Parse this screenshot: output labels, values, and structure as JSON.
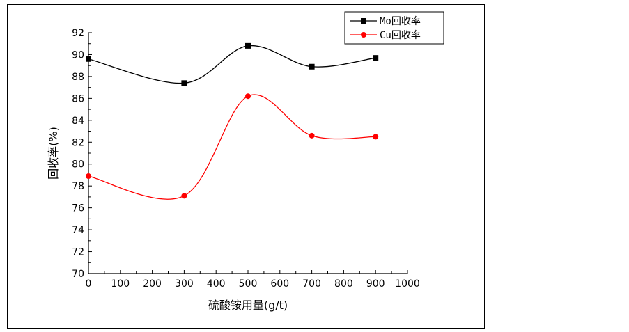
{
  "chart_data": {
    "type": "line",
    "xlabel": "硫酸铵用量(g/t)",
    "ylabel": "回收率(%)",
    "xlim": [
      0,
      1000
    ],
    "ylim": [
      70,
      92
    ],
    "x_ticks": [
      0,
      100,
      200,
      300,
      400,
      500,
      600,
      700,
      800,
      900,
      1000
    ],
    "y_ticks": [
      70,
      72,
      74,
      76,
      78,
      80,
      82,
      84,
      86,
      88,
      90,
      92
    ],
    "grid": false,
    "legend_position": "top-right",
    "series": [
      {
        "name": "Mo回收率",
        "color": "#000000",
        "marker": "square",
        "x": [
          0,
          300,
          500,
          700,
          900
        ],
        "y": [
          89.6,
          87.4,
          90.8,
          88.9,
          89.7
        ]
      },
      {
        "name": "Cu回收率",
        "color": "#ff0000",
        "marker": "circle",
        "x": [
          0,
          300,
          500,
          700,
          900
        ],
        "y": [
          78.9,
          77.1,
          86.2,
          82.6,
          82.5
        ]
      }
    ]
  }
}
